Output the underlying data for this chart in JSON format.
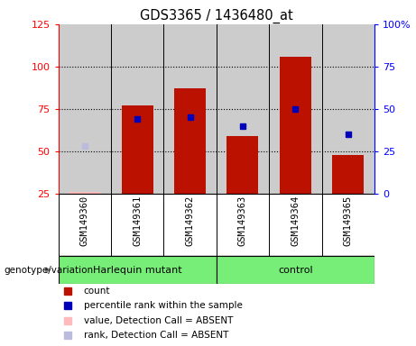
{
  "title": "GDS3365 / 1436480_at",
  "samples": [
    "GSM149360",
    "GSM149361",
    "GSM149362",
    "GSM149363",
    "GSM149364",
    "GSM149365"
  ],
  "count_values": [
    26,
    77,
    87,
    59,
    106,
    48
  ],
  "count_absent": [
    true,
    false,
    false,
    false,
    false,
    false
  ],
  "percentile_values": [
    28,
    44,
    45,
    40,
    50,
    35
  ],
  "percentile_absent": [
    true,
    false,
    false,
    false,
    false,
    false
  ],
  "ylim_left": [
    25,
    125
  ],
  "ylim_right": [
    0,
    100
  ],
  "yticks_left": [
    25,
    50,
    75,
    100,
    125
  ],
  "yticks_right": [
    0,
    25,
    50,
    75,
    100
  ],
  "ytick_labels_left": [
    "25",
    "50",
    "75",
    "100",
    "125"
  ],
  "ytick_labels_right": [
    "0",
    "25",
    "50",
    "75",
    "100%"
  ],
  "hgrid_values": [
    50,
    75,
    100
  ],
  "bar_color_normal": "#BB1100",
  "bar_color_absent": "#FFBBBB",
  "dot_color_normal": "#0000BB",
  "dot_color_absent": "#BBBBDD",
  "bg_color": "#CCCCCC",
  "green_color": "#77EE77",
  "harlequin_samples": [
    0,
    1,
    2
  ],
  "control_samples": [
    3,
    4,
    5
  ],
  "legend_items": [
    {
      "label": "count",
      "color": "#BB1100"
    },
    {
      "label": "percentile rank within the sample",
      "color": "#0000BB"
    },
    {
      "label": "value, Detection Call = ABSENT",
      "color": "#FFBBBB"
    },
    {
      "label": "rank, Detection Call = ABSENT",
      "color": "#BBBBDD"
    }
  ]
}
